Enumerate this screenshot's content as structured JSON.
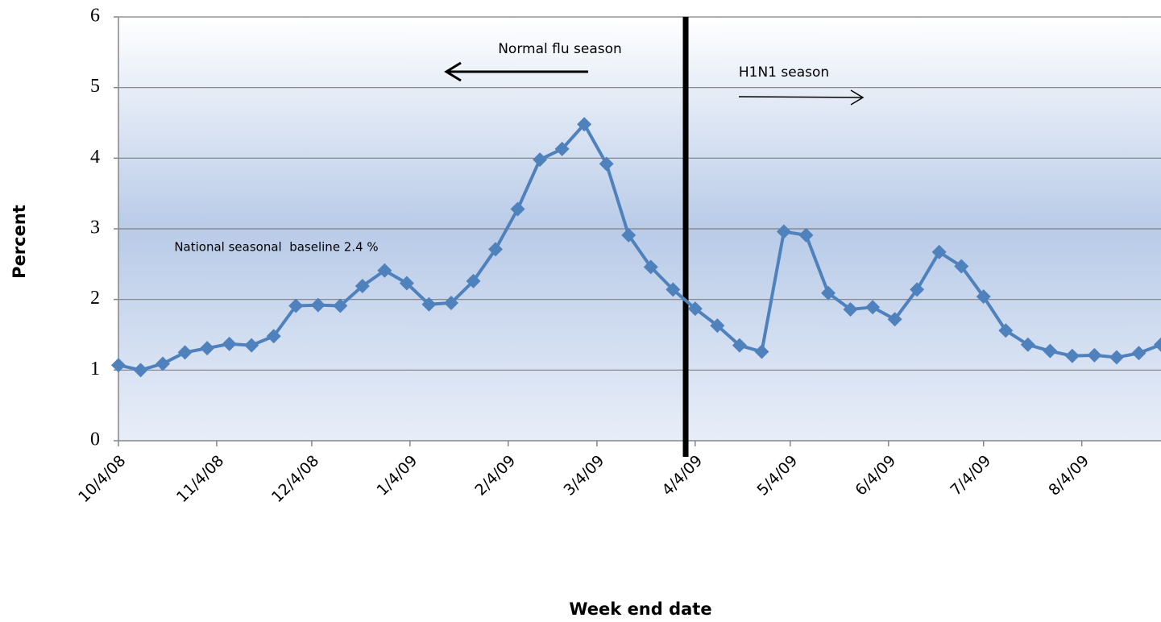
{
  "chart_data": {
    "type": "line",
    "x_label": "Week end date",
    "y_label": "Percent",
    "x": [
      "10/4/08",
      "10/11/08",
      "10/18/08",
      "10/25/08",
      "11/1/08",
      "11/8/08",
      "11/15/08",
      "11/22/08",
      "11/29/08",
      "12/6/08",
      "12/13/08",
      "12/20/08",
      "12/27/08",
      "1/3/09",
      "1/10/09",
      "1/17/09",
      "1/24/09",
      "1/31/09",
      "2/7/09",
      "2/14/09",
      "2/21/09",
      "2/28/09",
      "3/7/09",
      "3/14/09",
      "3/21/09",
      "3/28/09",
      "4/4/09",
      "4/11/09",
      "4/18/09",
      "4/25/09",
      "5/2/09",
      "5/9/09",
      "5/16/09",
      "5/23/09",
      "5/30/09",
      "6/6/09",
      "6/13/09",
      "6/20/09",
      "6/27/09",
      "7/4/09",
      "7/11/09",
      "7/18/09",
      "7/25/09",
      "8/1/09",
      "8/8/09",
      "8/15/09",
      "8/22/09",
      "8/29/09"
    ],
    "series": [
      {
        "color": "#4f81bd",
        "values": [
          1.07,
          1.0,
          1.09,
          1.25,
          1.31,
          1.37,
          1.35,
          1.48,
          1.91,
          1.92,
          1.91,
          2.19,
          2.41,
          2.23,
          1.93,
          1.95,
          2.26,
          2.71,
          3.28,
          3.98,
          4.13,
          4.48,
          3.92,
          2.91,
          2.46,
          2.14,
          1.87,
          1.63,
          1.35,
          1.26,
          2.96,
          2.91,
          2.09,
          1.86,
          1.89,
          1.72,
          2.14,
          2.67,
          2.47,
          2.04,
          1.56,
          1.36,
          1.27,
          1.2,
          1.21,
          1.18,
          1.24,
          1.36
        ]
      }
    ],
    "xlim": [
      "10/4/08",
      "8/29/09"
    ],
    "xticks": [
      "10/4/08",
      "11/4/08",
      "12/4/08",
      "1/4/09",
      "2/4/09",
      "3/4/09",
      "4/4/09",
      "5/4/09",
      "6/4/09",
      "7/4/09",
      "8/4/09"
    ],
    "ylim": [
      0,
      6
    ],
    "yticks": [
      0,
      1,
      2,
      3,
      4,
      5,
      6
    ],
    "grid": true,
    "season_split": "4/1/09",
    "annotations": [
      "Normal flu season",
      "H1N1 season",
      "National seasonal  baseline 2.4 %"
    ]
  }
}
